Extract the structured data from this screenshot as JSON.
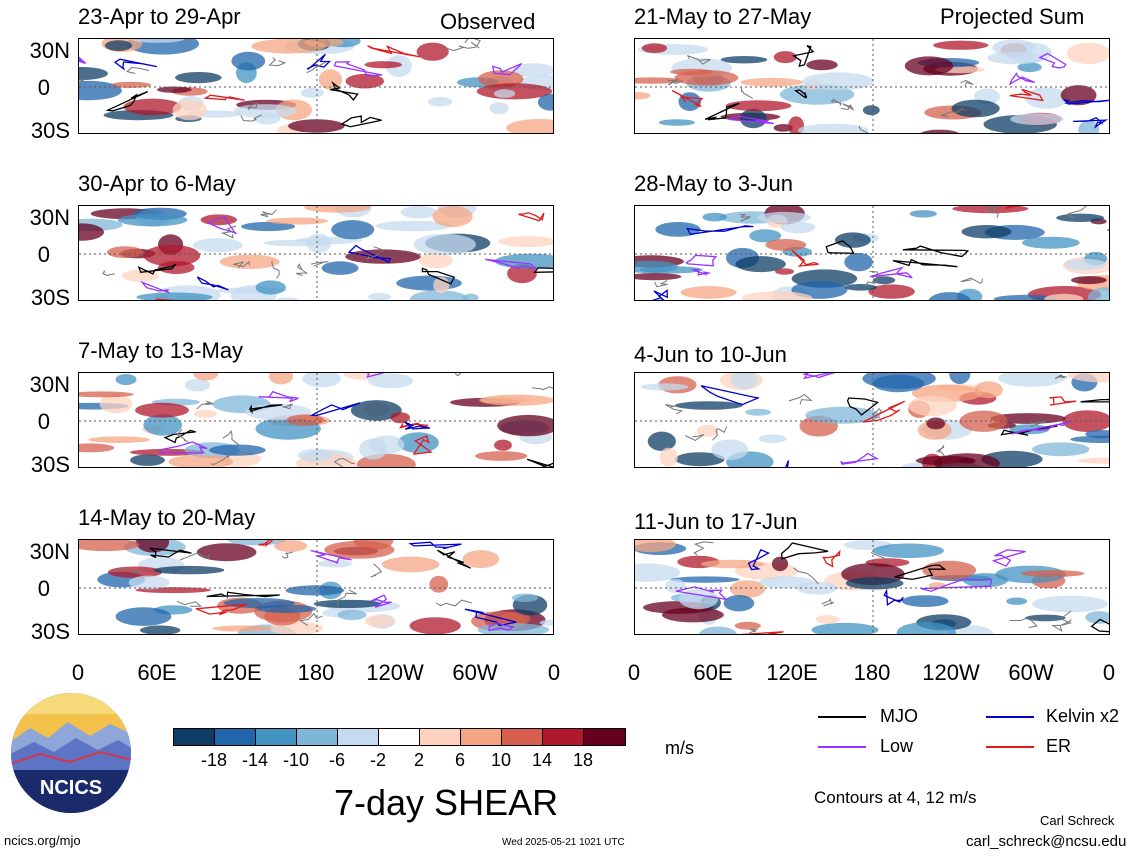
{
  "header": {
    "observed_label": "Observed",
    "projected_label": "Projected Sum"
  },
  "panels": {
    "left": [
      {
        "title": "23-Apr to 29-Apr"
      },
      {
        "title": "30-Apr to 6-May"
      },
      {
        "title": "7-May to 13-May"
      },
      {
        "title": "14-May to 20-May"
      }
    ],
    "right": [
      {
        "title": "21-May to 27-May"
      },
      {
        "title": "28-May to 3-Jun"
      },
      {
        "title": "4-Jun to 10-Jun"
      },
      {
        "title": "11-Jun to 17-Jun"
      }
    ]
  },
  "axes": {
    "lat_labels": [
      "30N",
      "0",
      "30S"
    ],
    "lon_labels": [
      "0",
      "60E",
      "120E",
      "180",
      "120W",
      "60W",
      "0"
    ]
  },
  "colorbar": {
    "ticks": [
      "-18",
      "-14",
      "-10",
      "-6",
      "-2",
      "2",
      "6",
      "10",
      "14",
      "18"
    ],
    "units": "m/s",
    "colors": [
      "#0d3d66",
      "#2166ac",
      "#4393c3",
      "#7fb5d9",
      "#c6dbef",
      "#ffffff",
      "#fdd3bf",
      "#f4a582",
      "#d6604d",
      "#b2182b",
      "#67001f"
    ]
  },
  "legend": {
    "mjo": "MJO",
    "low": "Low",
    "kelvin": "Kelvin x2",
    "er": "ER",
    "colors": {
      "mjo": "#000000",
      "low": "#9933ff",
      "kelvin": "#0000cc",
      "er": "#e31a1c"
    }
  },
  "footer": {
    "main_title": "7-day SHEAR",
    "contours_note": "Contours at 4, 12 m/s",
    "author": "Carl Schreck",
    "email": "carl_schreck@ncsu.edu",
    "url": "ncics.org/mjo",
    "timestamp": "Wed 2025-05-21 1021 UTC",
    "logo_text": "NCICS"
  }
}
